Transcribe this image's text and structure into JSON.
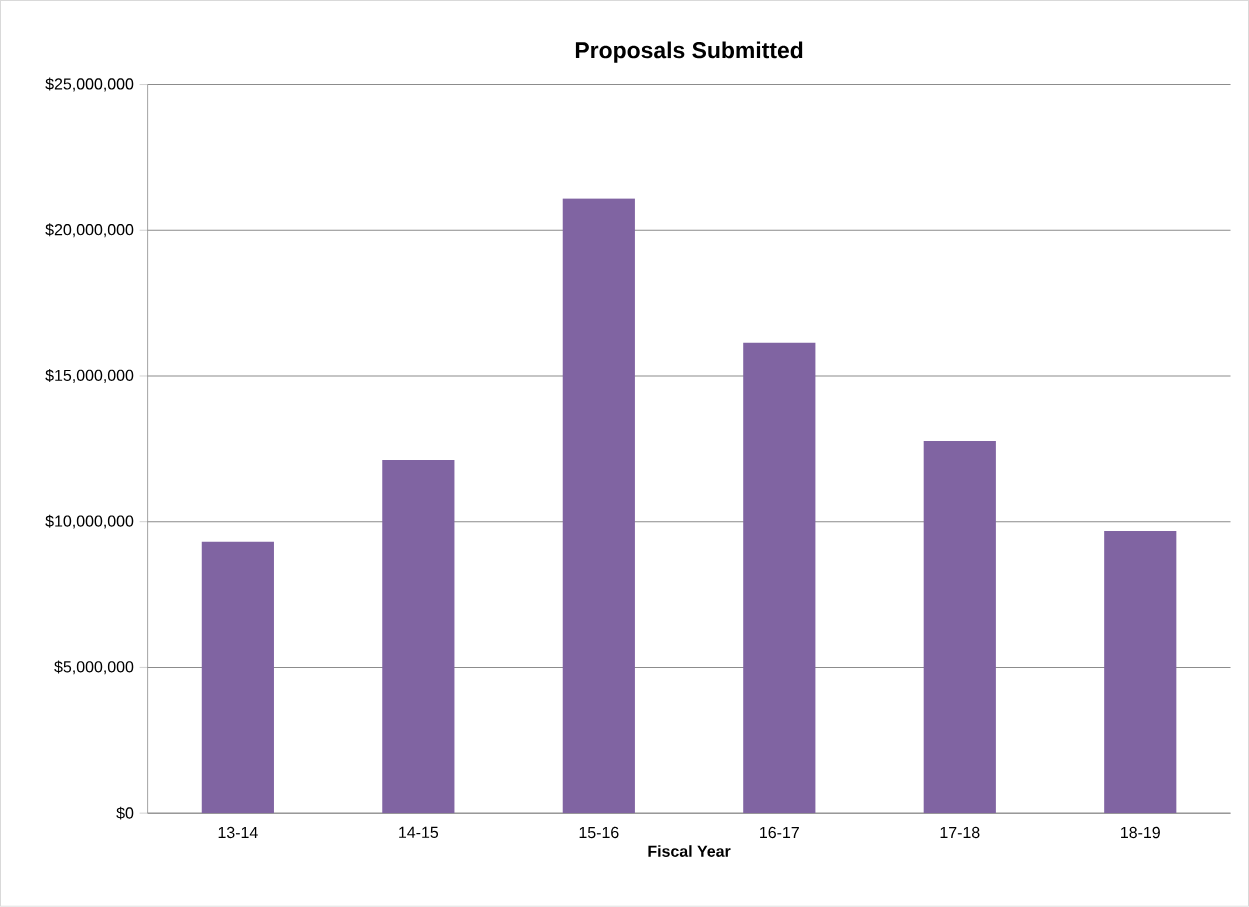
{
  "chart_data": {
    "type": "bar",
    "title": "Proposals Submitted",
    "xlabel": "Fiscal Year",
    "categories": [
      "13-14",
      "14-15",
      "15-16",
      "16-17",
      "17-18",
      "18-19"
    ],
    "values": [
      9310000,
      12120000,
      21090000,
      16140000,
      12770000,
      9680000
    ],
    "color": "#8064a2",
    "ylim": [
      0,
      25000000
    ],
    "yticks": [
      {
        "value": 0,
        "label": "$0"
      },
      {
        "value": 5000000,
        "label": "$5,000,000"
      },
      {
        "value": 10000000,
        "label": "$10,000,000"
      },
      {
        "value": 15000000,
        "label": "$15,000,000"
      },
      {
        "value": 20000000,
        "label": "$20,000,000"
      },
      {
        "value": 25000000,
        "label": "$25,000,000"
      }
    ],
    "grid": "y",
    "legend": false
  }
}
